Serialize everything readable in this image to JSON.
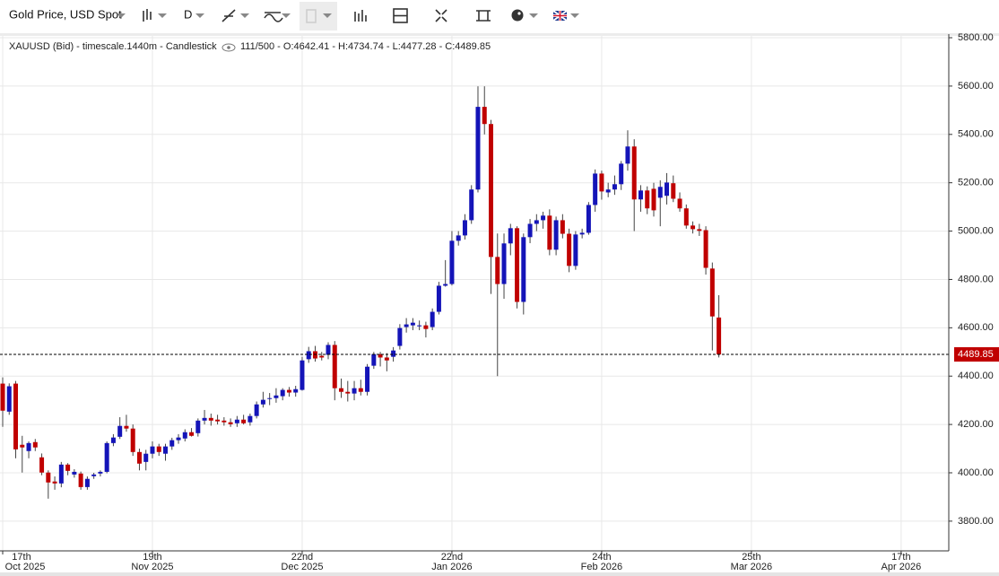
{
  "toolbar": {
    "instrument": "Gold Price, USD Spot",
    "period": "D"
  },
  "chart_data": {
    "type": "candlestick",
    "subtitle": "XAUUSD (Bid) - timescale.1440m - Candlestick",
    "ohlc_text": "111/500 - O:4642.41 - H:4734.74 - L:4477.28 - C:4489.85",
    "last_label": "4489.85",
    "up_color": "#1414b8",
    "down_color": "#c00000",
    "grid": true,
    "x": [
      "2025-10-17",
      "2025-10-20",
      "2025-10-21",
      "2025-10-22",
      "2025-10-23",
      "2025-10-24",
      "2025-10-27",
      "2025-10-28",
      "2025-10-29",
      "2025-10-30",
      "2025-10-31",
      "2025-11-03",
      "2025-11-04",
      "2025-11-05",
      "2025-11-06",
      "2025-11-07",
      "2025-11-10",
      "2025-11-11",
      "2025-11-12",
      "2025-11-13",
      "2025-11-14",
      "2025-11-17",
      "2025-11-18",
      "2025-11-19",
      "2025-11-20",
      "2025-11-21",
      "2025-11-24",
      "2025-11-25",
      "2025-11-26",
      "2025-11-27",
      "2025-11-28",
      "2025-12-01",
      "2025-12-02",
      "2025-12-03",
      "2025-12-04",
      "2025-12-05",
      "2025-12-08",
      "2025-12-09",
      "2025-12-10",
      "2025-12-11",
      "2025-12-12",
      "2025-12-15",
      "2025-12-16",
      "2025-12-17",
      "2025-12-18",
      "2025-12-19",
      "2025-12-22",
      "2025-12-23",
      "2025-12-24",
      "2025-12-25",
      "2025-12-26",
      "2025-12-29",
      "2025-12-30",
      "2025-12-31",
      "2026-01-01",
      "2026-01-02",
      "2026-01-05",
      "2026-01-06",
      "2026-01-07",
      "2026-01-08",
      "2026-01-09",
      "2026-01-12",
      "2026-01-13",
      "2026-01-14",
      "2026-01-15",
      "2026-01-16",
      "2026-01-19",
      "2026-01-20",
      "2026-01-21",
      "2026-01-22",
      "2026-01-23",
      "2026-01-26",
      "2026-01-27",
      "2026-01-28",
      "2026-01-29",
      "2026-01-30",
      "2026-02-02",
      "2026-02-03",
      "2026-02-04",
      "2026-02-05",
      "2026-02-06",
      "2026-02-09",
      "2026-02-10",
      "2026-02-11",
      "2026-02-12",
      "2026-02-13",
      "2026-02-16",
      "2026-02-17",
      "2026-02-18",
      "2026-02-19",
      "2026-02-20",
      "2026-02-23",
      "2026-02-24",
      "2026-02-25",
      "2026-02-26",
      "2026-02-27",
      "2026-03-02",
      "2026-03-03",
      "2026-03-04",
      "2026-03-05",
      "2026-03-06",
      "2026-03-09",
      "2026-03-10",
      "2026-03-11",
      "2026-03-12",
      "2026-03-13",
      "2026-03-16",
      "2026-03-17",
      "2026-03-18",
      "2026-03-19",
      "2026-03-20"
    ],
    "open": [
      4369,
      4253,
      4369,
      4116,
      4090,
      4127,
      4064,
      4001,
      3964,
      3956,
      4034,
      3993,
      3997,
      3941,
      3986,
      3997,
      4004,
      4123,
      4149,
      4194,
      4183,
      4086,
      4045,
      4079,
      4109,
      4079,
      4109,
      4135,
      4142,
      4168,
      4164,
      4216,
      4227,
      4220,
      4216,
      4209,
      4205,
      4220,
      4209,
      4235,
      4283,
      4306,
      4309,
      4317,
      4343,
      4332,
      4343,
      4470,
      4503,
      4484,
      4488,
      4529,
      4350,
      4335,
      4328,
      4350,
      4335,
      4443,
      4491,
      4477,
      4480,
      4525,
      4603,
      4610,
      4606,
      4610,
      4603,
      4666,
      4774,
      4781,
      4960,
      4982,
      5045,
      5172,
      5514,
      5443,
      4893,
      4781,
      4949,
      5012,
      4707,
      4975,
      5030,
      5045,
      5064,
      4923,
      5045,
      4989,
      4856,
      4986,
      4993,
      5108,
      5238,
      5160,
      5172,
      5194,
      5279,
      5350,
      5131,
      5168,
      5175,
      5138,
      5146,
      5198,
      5134,
      5094,
      5023,
      5008,
      5004,
      4845,
      4642.41
    ],
    "high": [
      4395,
      4370,
      4380,
      4153,
      4130,
      4140,
      4080,
      4010,
      3985,
      4045,
      4040,
      4015,
      4005,
      3985,
      4000,
      4010,
      4130,
      4160,
      4230,
      4240,
      4200,
      4100,
      4095,
      4130,
      4120,
      4120,
      4145,
      4160,
      4180,
      4185,
      4225,
      4260,
      4245,
      4240,
      4230,
      4225,
      4235,
      4240,
      4245,
      4295,
      4335,
      4330,
      4350,
      4350,
      4355,
      4360,
      4480,
      4521,
      4525,
      4500,
      4540,
      4545,
      4390,
      4380,
      4380,
      4385,
      4450,
      4500,
      4500,
      4495,
      4520,
      4615,
      4640,
      4640,
      4630,
      4625,
      4680,
      4790,
      4880,
      5000,
      5000,
      5070,
      5190,
      5599,
      5599,
      5460,
      4990,
      4990,
      5030,
      5020,
      4990,
      5050,
      5070,
      5080,
      5090,
      5060,
      5070,
      5010,
      5000,
      5010,
      5120,
      5255,
      5250,
      5200,
      5230,
      5290,
      5417,
      5380,
      5190,
      5185,
      5200,
      5210,
      5240,
      5230,
      5160,
      5110,
      5040,
      5030,
      5020,
      4870,
      4734.74
    ],
    "low": [
      4190,
      4240,
      4060,
      4001,
      4060,
      4090,
      3990,
      3893,
      3930,
      3940,
      3990,
      3980,
      3930,
      3930,
      3975,
      3985,
      3998,
      4110,
      4140,
      4170,
      4070,
      4010,
      4010,
      4060,
      4070,
      4050,
      4095,
      4120,
      4130,
      4150,
      4150,
      4200,
      4195,
      4200,
      4195,
      4190,
      4190,
      4200,
      4195,
      4225,
      4270,
      4280,
      4290,
      4300,
      4315,
      4315,
      4340,
      4455,
      4460,
      4465,
      4470,
      4300,
      4310,
      4295,
      4300,
      4320,
      4320,
      4430,
      4440,
      4420,
      4460,
      4510,
      4580,
      4590,
      4590,
      4560,
      4590,
      4655,
      4770,
      4775,
      4940,
      4965,
      5030,
      5160,
      5400,
      4740,
      4400,
      4720,
      4900,
      4680,
      4655,
      4950,
      5000,
      5010,
      4900,
      4900,
      4970,
      4830,
      4840,
      4970,
      4985,
      5080,
      5130,
      5140,
      5150,
      5170,
      5250,
      5000,
      5080,
      5070,
      5060,
      5020,
      5110,
      5120,
      5080,
      5010,
      4990,
      4980,
      4820,
      4506,
      4477.28
    ],
    "close": [
      4257,
      4358,
      4097,
      4105,
      4123,
      4105,
      4001,
      3960,
      3956,
      4034,
      4008,
      4004,
      3941,
      3975,
      3993,
      4004,
      4123,
      4146,
      4194,
      4183,
      4086,
      4038,
      4079,
      4109,
      4086,
      4109,
      4135,
      4146,
      4168,
      4153,
      4216,
      4227,
      4216,
      4213,
      4209,
      4201,
      4220,
      4205,
      4235,
      4283,
      4302,
      4309,
      4320,
      4343,
      4332,
      4346,
      4465,
      4503,
      4473,
      4477,
      4529,
      4350,
      4335,
      4328,
      4350,
      4335,
      4439,
      4491,
      4477,
      4465,
      4506,
      4599,
      4614,
      4621,
      4610,
      4595,
      4666,
      4774,
      4781,
      4960,
      4982,
      5045,
      5172,
      5514,
      5443,
      4893,
      4781,
      4949,
      5012,
      4707,
      4975,
      5030,
      5045,
      5064,
      4923,
      5045,
      4989,
      4856,
      4986,
      4993,
      5108,
      5238,
      5164,
      5172,
      5194,
      5279,
      5350,
      5131,
      5168,
      5094,
      5086,
      5183,
      5201,
      5134,
      5094,
      5023,
      5008,
      5001,
      4848,
      4647,
      4489.85
    ],
    "ylim": [
      3677,
      5815
    ],
    "yticks": [
      {
        "value": 3800,
        "label": "3800.00"
      },
      {
        "value": 4000,
        "label": "4000.00"
      },
      {
        "value": 4200,
        "label": "4200.00"
      },
      {
        "value": 4400,
        "label": "4400.00"
      },
      {
        "value": 4600,
        "label": "4600.00"
      },
      {
        "value": 4800,
        "label": "4800.00"
      },
      {
        "value": 5000,
        "label": "5000.00"
      },
      {
        "value": 5200,
        "label": "5200.00"
      },
      {
        "value": 5400,
        "label": "5400.00"
      },
      {
        "value": 5600,
        "label": "5600.00"
      },
      {
        "value": 5800,
        "label": "5800.00"
      }
    ],
    "xticks": [
      {
        "value": "2025-10-17",
        "label": "17th",
        "sublabel": "Oct 2025"
      },
      {
        "value": "2025-11-19",
        "label": "19th",
        "sublabel": "Nov 2025"
      },
      {
        "value": "2025-12-22",
        "label": "22nd",
        "sublabel": "Dec 2025"
      },
      {
        "value": "2026-01-22",
        "label": "22nd",
        "sublabel": "Jan 2026"
      },
      {
        "value": "2026-02-24",
        "label": "24th",
        "sublabel": "Feb 2026"
      },
      {
        "value": "2026-03-25",
        "label": "25th",
        "sublabel": "Mar 2026"
      },
      {
        "value": "2026-04-17",
        "label": "17th",
        "sublabel": "Apr 2026"
      }
    ]
  }
}
